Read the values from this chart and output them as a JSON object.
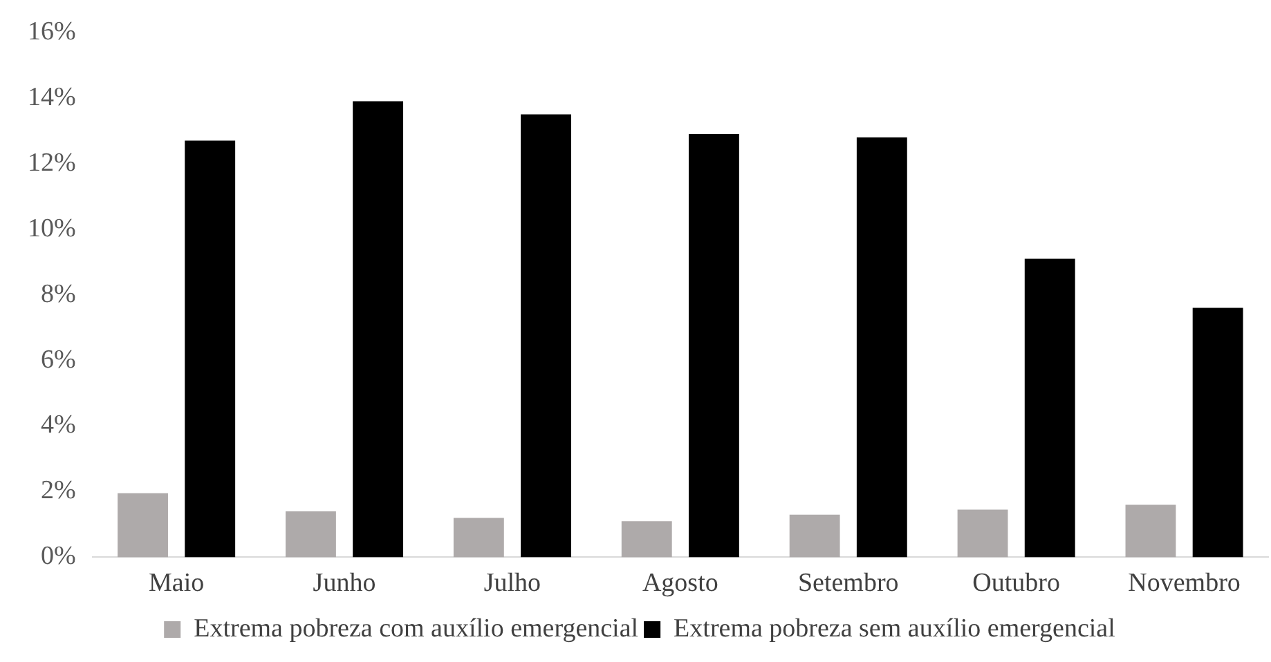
{
  "chart_data": {
    "type": "bar",
    "categories": [
      "Maio",
      "Junho",
      "Julho",
      "Agosto",
      "Setembro",
      "Outubro",
      "Novembro"
    ],
    "series": [
      {
        "name": "Extrema pobreza com auxílio emergencial",
        "color": "#aeaaaa",
        "values": [
          1.95,
          1.4,
          1.2,
          1.1,
          1.3,
          1.45,
          1.6
        ]
      },
      {
        "name": "Extrema pobreza sem auxílio emergencial",
        "color": "#000000",
        "values": [
          12.7,
          13.9,
          13.5,
          12.9,
          12.8,
          9.1,
          7.6
        ]
      }
    ],
    "ylim": [
      0,
      16
    ],
    "yticks": [
      {
        "value": 0,
        "label": "0%"
      },
      {
        "value": 2,
        "label": "2%"
      },
      {
        "value": 4,
        "label": "4%"
      },
      {
        "value": 6,
        "label": "6%"
      },
      {
        "value": 8,
        "label": "8%"
      },
      {
        "value": 10,
        "label": "10%"
      },
      {
        "value": 12,
        "label": "12%"
      },
      {
        "value": 14,
        "label": "14%"
      },
      {
        "value": 16,
        "label": "16%"
      }
    ],
    "grid": false,
    "legend": "bottom"
  }
}
